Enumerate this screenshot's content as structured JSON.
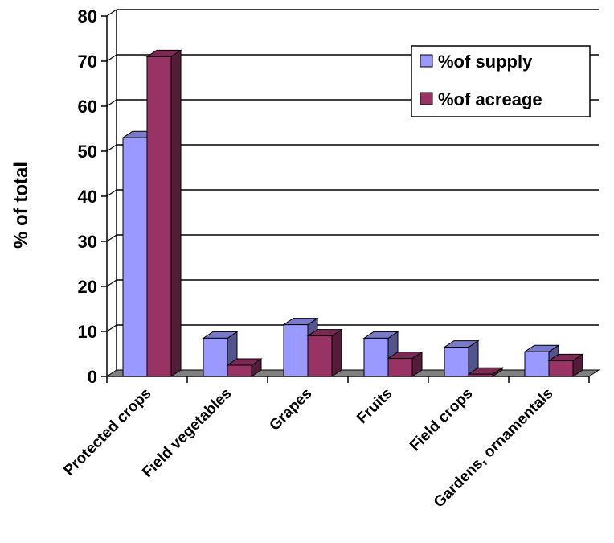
{
  "chart_data": {
    "type": "bar",
    "categories": [
      "Protected crops",
      "Field vegetables",
      "Grapes",
      "Fruits",
      "Field crops",
      "Gardens, ornamentals"
    ],
    "series": [
      {
        "name": "%of supply",
        "values": [
          53,
          8.5,
          11.5,
          8.5,
          6.5,
          5.5
        ]
      },
      {
        "name": "%of acreage",
        "values": [
          71,
          2.5,
          9,
          4,
          0.5,
          3.5
        ]
      }
    ],
    "title": "",
    "xlabel": "",
    "ylabel": "% of total",
    "ylim": [
      0,
      80
    ],
    "yticks": [
      "0",
      "10",
      "20",
      "30",
      "40",
      "50",
      "60",
      "70",
      "80"
    ],
    "grid": true,
    "legend": "top-right",
    "three_d": true
  },
  "colors": {
    "supply": "#9999ff",
    "acreage": "#993366",
    "grid": "#000000",
    "floor": "#808080"
  }
}
